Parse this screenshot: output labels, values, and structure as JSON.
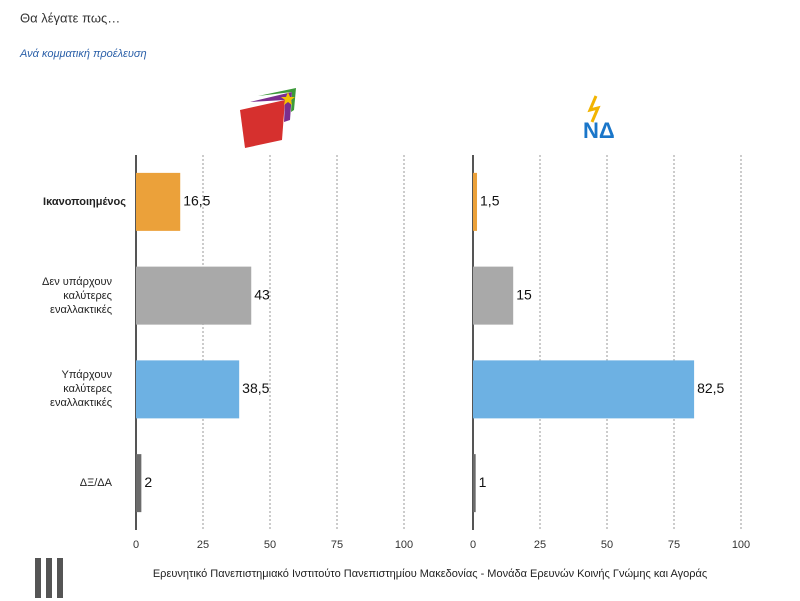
{
  "title": "Θα λέγατε πως…",
  "subtitle": "Ανά κομματική προέλευση",
  "footer": "Ερευνητικό Πανεπιστημιακό Ινστιτούτο Πανεπιστημίου Μακεδονίας - Μονάδα Ερευνών Κοινής Γνώμης και Αγοράς",
  "chart_data": [
    {
      "type": "bar",
      "orientation": "horizontal",
      "categories": [
        "Ικανοποιημένος",
        "Δεν υπάρχουν καλύτερες εναλλακτικές",
        "Υπάρχουν καλύτερες εναλλακτικές",
        "ΔΞ/ΔΑ"
      ],
      "values": [
        16.5,
        43,
        38.5,
        2
      ],
      "value_labels": [
        "16,5",
        "43",
        "38,5",
        "2"
      ],
      "colors": [
        "#eba13a",
        "#a9a9a9",
        "#6db1e3",
        "#6b6b6b"
      ],
      "xlim": [
        0,
        100
      ],
      "xticks": [
        0,
        25,
        50,
        75,
        100
      ],
      "grid": true
    },
    {
      "type": "bar",
      "orientation": "horizontal",
      "logo_text": "ΝΔ",
      "values": [
        1.5,
        15,
        82.5,
        1
      ],
      "value_labels": [
        "1,5",
        "15",
        "82,5",
        "1"
      ],
      "colors": [
        "#eba13a",
        "#a9a9a9",
        "#6db1e3",
        "#6b6b6b"
      ],
      "xlim": [
        0,
        100
      ],
      "xticks": [
        0,
        25,
        50,
        75,
        100
      ],
      "grid": true
    }
  ]
}
